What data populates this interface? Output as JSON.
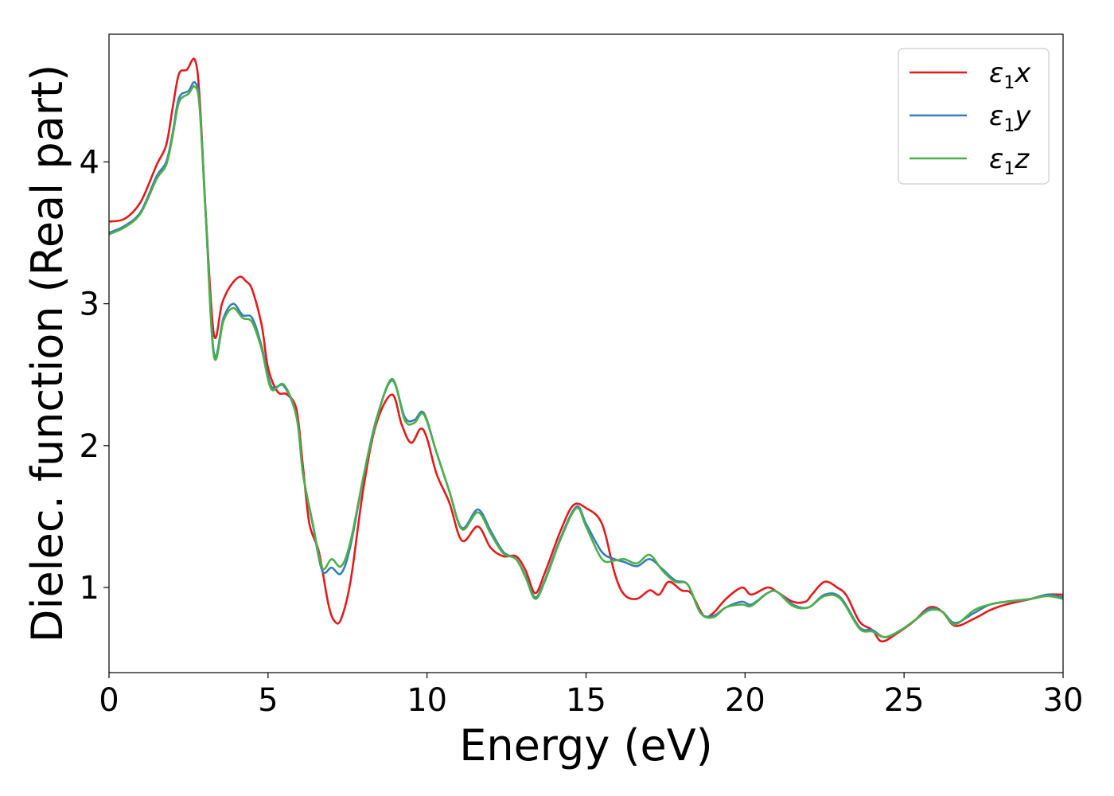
{
  "chart_data": {
    "type": "line",
    "xlabel": "Energy (eV)",
    "ylabel": "Dielec. function (Real part)",
    "xlim": [
      0,
      30
    ],
    "ylim": [
      0.4,
      4.9
    ],
    "xticks": [
      0,
      5,
      10,
      15,
      20,
      25,
      30
    ],
    "yticks": [
      1,
      2,
      3,
      4
    ],
    "grid": false,
    "legend_position": "top-right",
    "series": [
      {
        "name": "ε1x",
        "legend_symbol": "ε",
        "legend_sub": "1",
        "legend_var": "x",
        "color": "#e41a1c",
        "points": [
          [
            0,
            3.58
          ],
          [
            0.5,
            3.6
          ],
          [
            1.0,
            3.72
          ],
          [
            1.5,
            3.98
          ],
          [
            1.8,
            4.12
          ],
          [
            2.0,
            4.38
          ],
          [
            2.2,
            4.62
          ],
          [
            2.45,
            4.65
          ],
          [
            2.7,
            4.72
          ],
          [
            2.85,
            4.45
          ],
          [
            3.05,
            3.6
          ],
          [
            3.3,
            2.78
          ],
          [
            3.55,
            3.0
          ],
          [
            3.8,
            3.12
          ],
          [
            4.1,
            3.19
          ],
          [
            4.3,
            3.16
          ],
          [
            4.5,
            3.1
          ],
          [
            4.8,
            2.85
          ],
          [
            5.0,
            2.55
          ],
          [
            5.3,
            2.38
          ],
          [
            5.6,
            2.36
          ],
          [
            5.9,
            2.25
          ],
          [
            6.1,
            1.85
          ],
          [
            6.3,
            1.45
          ],
          [
            6.6,
            1.25
          ],
          [
            6.9,
            0.88
          ],
          [
            7.1,
            0.76
          ],
          [
            7.3,
            0.78
          ],
          [
            7.6,
            1.05
          ],
          [
            8.0,
            1.7
          ],
          [
            8.4,
            2.15
          ],
          [
            8.9,
            2.36
          ],
          [
            9.2,
            2.15
          ],
          [
            9.5,
            2.02
          ],
          [
            9.8,
            2.12
          ],
          [
            10.0,
            2.05
          ],
          [
            10.3,
            1.8
          ],
          [
            10.7,
            1.6
          ],
          [
            11.1,
            1.33
          ],
          [
            11.6,
            1.43
          ],
          [
            12.0,
            1.28
          ],
          [
            12.4,
            1.22
          ],
          [
            12.8,
            1.22
          ],
          [
            13.1,
            1.12
          ],
          [
            13.4,
            0.96
          ],
          [
            13.7,
            1.1
          ],
          [
            14.2,
            1.4
          ],
          [
            14.6,
            1.58
          ],
          [
            15.0,
            1.56
          ],
          [
            15.5,
            1.45
          ],
          [
            15.9,
            1.1
          ],
          [
            16.2,
            0.95
          ],
          [
            16.6,
            0.92
          ],
          [
            17.0,
            0.98
          ],
          [
            17.3,
            0.95
          ],
          [
            17.6,
            1.04
          ],
          [
            18.0,
            0.98
          ],
          [
            18.3,
            0.96
          ],
          [
            18.7,
            0.8
          ],
          [
            19.0,
            0.82
          ],
          [
            19.4,
            0.92
          ],
          [
            19.9,
            1.0
          ],
          [
            20.2,
            0.95
          ],
          [
            20.7,
            1.0
          ],
          [
            21.0,
            0.97
          ],
          [
            21.5,
            0.9
          ],
          [
            21.9,
            0.9
          ],
          [
            22.1,
            0.95
          ],
          [
            22.5,
            1.04
          ],
          [
            22.9,
            1.0
          ],
          [
            23.2,
            0.94
          ],
          [
            23.6,
            0.76
          ],
          [
            24.0,
            0.7
          ],
          [
            24.3,
            0.62
          ],
          [
            24.8,
            0.68
          ],
          [
            25.3,
            0.76
          ],
          [
            25.8,
            0.86
          ],
          [
            26.2,
            0.83
          ],
          [
            26.6,
            0.73
          ],
          [
            27.2,
            0.78
          ],
          [
            27.7,
            0.84
          ],
          [
            28.2,
            0.88
          ],
          [
            29.0,
            0.92
          ],
          [
            29.5,
            0.95
          ],
          [
            30.0,
            0.95
          ]
        ]
      },
      {
        "name": "ε1y",
        "legend_symbol": "ε",
        "legend_sub": "1",
        "legend_var": "y",
        "color": "#377eb8",
        "points": [
          [
            0,
            3.5
          ],
          [
            0.5,
            3.55
          ],
          [
            1.0,
            3.65
          ],
          [
            1.5,
            3.9
          ],
          [
            1.8,
            4.0
          ],
          [
            2.0,
            4.2
          ],
          [
            2.2,
            4.45
          ],
          [
            2.5,
            4.5
          ],
          [
            2.7,
            4.56
          ],
          [
            2.85,
            4.4
          ],
          [
            3.05,
            3.6
          ],
          [
            3.3,
            2.65
          ],
          [
            3.6,
            2.9
          ],
          [
            3.9,
            3.0
          ],
          [
            4.2,
            2.92
          ],
          [
            4.5,
            2.9
          ],
          [
            4.8,
            2.7
          ],
          [
            5.1,
            2.42
          ],
          [
            5.5,
            2.42
          ],
          [
            5.9,
            2.2
          ],
          [
            6.1,
            1.8
          ],
          [
            6.4,
            1.45
          ],
          [
            6.7,
            1.12
          ],
          [
            7.0,
            1.14
          ],
          [
            7.3,
            1.1
          ],
          [
            7.6,
            1.3
          ],
          [
            8.0,
            1.78
          ],
          [
            8.4,
            2.18
          ],
          [
            8.9,
            2.46
          ],
          [
            9.3,
            2.2
          ],
          [
            9.6,
            2.18
          ],
          [
            9.9,
            2.23
          ],
          [
            10.3,
            1.95
          ],
          [
            10.7,
            1.68
          ],
          [
            11.1,
            1.42
          ],
          [
            11.6,
            1.55
          ],
          [
            12.0,
            1.4
          ],
          [
            12.4,
            1.25
          ],
          [
            12.8,
            1.2
          ],
          [
            13.1,
            1.08
          ],
          [
            13.4,
            0.93
          ],
          [
            13.7,
            1.05
          ],
          [
            14.2,
            1.35
          ],
          [
            14.7,
            1.57
          ],
          [
            15.0,
            1.45
          ],
          [
            15.5,
            1.25
          ],
          [
            15.9,
            1.2
          ],
          [
            16.2,
            1.18
          ],
          [
            16.6,
            1.15
          ],
          [
            17.0,
            1.2
          ],
          [
            17.4,
            1.13
          ],
          [
            17.8,
            1.05
          ],
          [
            18.2,
            1.02
          ],
          [
            18.6,
            0.82
          ],
          [
            19.0,
            0.8
          ],
          [
            19.4,
            0.86
          ],
          [
            19.9,
            0.9
          ],
          [
            20.2,
            0.88
          ],
          [
            20.7,
            0.96
          ],
          [
            21.0,
            0.97
          ],
          [
            21.5,
            0.88
          ],
          [
            22.0,
            0.86
          ],
          [
            22.5,
            0.95
          ],
          [
            23.0,
            0.93
          ],
          [
            23.6,
            0.72
          ],
          [
            24.0,
            0.7
          ],
          [
            24.4,
            0.65
          ],
          [
            24.9,
            0.7
          ],
          [
            25.4,
            0.78
          ],
          [
            25.8,
            0.85
          ],
          [
            26.2,
            0.83
          ],
          [
            26.6,
            0.75
          ],
          [
            27.2,
            0.82
          ],
          [
            27.7,
            0.88
          ],
          [
            28.2,
            0.9
          ],
          [
            29.0,
            0.92
          ],
          [
            29.5,
            0.95
          ],
          [
            30.0,
            0.93
          ]
        ]
      },
      {
        "name": "ε1z",
        "legend_symbol": "ε",
        "legend_sub": "1",
        "legend_var": "z",
        "color": "#4daf4a",
        "points": [
          [
            0,
            3.49
          ],
          [
            0.5,
            3.54
          ],
          [
            1.0,
            3.64
          ],
          [
            1.5,
            3.88
          ],
          [
            1.8,
            3.98
          ],
          [
            2.0,
            4.18
          ],
          [
            2.2,
            4.42
          ],
          [
            2.5,
            4.48
          ],
          [
            2.7,
            4.53
          ],
          [
            2.85,
            4.38
          ],
          [
            3.05,
            3.58
          ],
          [
            3.3,
            2.63
          ],
          [
            3.6,
            2.88
          ],
          [
            3.9,
            2.97
          ],
          [
            4.2,
            2.9
          ],
          [
            4.5,
            2.87
          ],
          [
            4.8,
            2.68
          ],
          [
            5.1,
            2.4
          ],
          [
            5.5,
            2.43
          ],
          [
            5.9,
            2.2
          ],
          [
            6.1,
            1.8
          ],
          [
            6.4,
            1.46
          ],
          [
            6.7,
            1.14
          ],
          [
            7.0,
            1.2
          ],
          [
            7.3,
            1.15
          ],
          [
            7.6,
            1.33
          ],
          [
            8.0,
            1.78
          ],
          [
            8.4,
            2.17
          ],
          [
            8.9,
            2.47
          ],
          [
            9.3,
            2.18
          ],
          [
            9.6,
            2.16
          ],
          [
            9.9,
            2.22
          ],
          [
            10.3,
            1.95
          ],
          [
            10.7,
            1.68
          ],
          [
            11.1,
            1.41
          ],
          [
            11.6,
            1.53
          ],
          [
            12.0,
            1.38
          ],
          [
            12.4,
            1.24
          ],
          [
            12.8,
            1.2
          ],
          [
            13.1,
            1.07
          ],
          [
            13.4,
            0.92
          ],
          [
            13.7,
            1.04
          ],
          [
            14.2,
            1.34
          ],
          [
            14.7,
            1.56
          ],
          [
            15.0,
            1.43
          ],
          [
            15.5,
            1.2
          ],
          [
            15.9,
            1.19
          ],
          [
            16.2,
            1.2
          ],
          [
            16.6,
            1.17
          ],
          [
            17.0,
            1.23
          ],
          [
            17.4,
            1.12
          ],
          [
            17.8,
            1.04
          ],
          [
            18.2,
            1.02
          ],
          [
            18.6,
            0.82
          ],
          [
            19.0,
            0.79
          ],
          [
            19.4,
            0.86
          ],
          [
            19.9,
            0.88
          ],
          [
            20.2,
            0.87
          ],
          [
            20.7,
            0.96
          ],
          [
            21.0,
            0.97
          ],
          [
            21.5,
            0.87
          ],
          [
            22.0,
            0.86
          ],
          [
            22.5,
            0.94
          ],
          [
            23.0,
            0.92
          ],
          [
            23.6,
            0.71
          ],
          [
            24.0,
            0.69
          ],
          [
            24.4,
            0.65
          ],
          [
            24.9,
            0.7
          ],
          [
            25.4,
            0.78
          ],
          [
            25.8,
            0.84
          ],
          [
            26.2,
            0.83
          ],
          [
            26.6,
            0.74
          ],
          [
            27.2,
            0.84
          ],
          [
            27.7,
            0.88
          ],
          [
            28.2,
            0.9
          ],
          [
            29.0,
            0.92
          ],
          [
            29.5,
            0.94
          ],
          [
            30.0,
            0.92
          ]
        ]
      }
    ]
  }
}
